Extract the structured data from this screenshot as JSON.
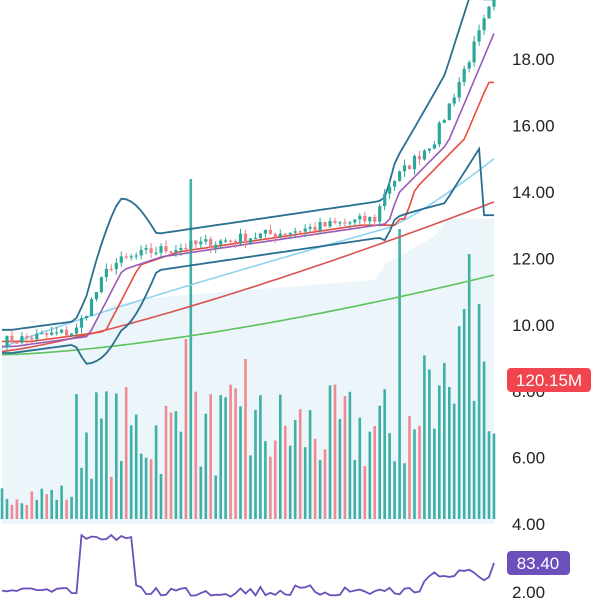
{
  "chart_data": {
    "type": "candlestick",
    "y_axis": {
      "ticks": [
        "18.00",
        "16.00",
        "14.00",
        "12.00",
        "10.00",
        "8.00",
        "6.00",
        "4.00"
      ],
      "tick_values": [
        18,
        16,
        14,
        12,
        10,
        8,
        6,
        4
      ],
      "side": "right"
    },
    "volume_badge": {
      "label": "120.15M",
      "color": "#f0444f"
    },
    "indicator_badge": {
      "label": "83.40",
      "color": "#6b4fbb"
    },
    "lower_axis_ticks": [
      "2.00"
    ],
    "colors": {
      "up": "#2ba89b",
      "down": "#ef7f86",
      "bollinger": "#2a6f8f",
      "ma_fast": "#9b59b6",
      "ma_mid": "#e74c3c",
      "ma_slow_light": "#8fd3f0",
      "ma_long": "#d9534f",
      "ma_longest": "#5cc35c",
      "area_fill": "#e6f1f8",
      "indicator": "#6b4fbb"
    },
    "price": {
      "base_range": [
        9.5,
        9.8
      ],
      "breakout_1": 11.8,
      "consolidation_range": [
        12.2,
        13.2
      ],
      "breakout_2": 14.1,
      "latest_high": 19.8
    },
    "moving_averages": {
      "ma_fast_end": 19.2,
      "ma_mid_end": 17.3,
      "ma_slow_light_end": 15.0,
      "ma_long_end": 13.7,
      "ma_longest_end": 11.5,
      "ma_longest_start": 9.1
    },
    "bollinger": {
      "upper_end": 19.8,
      "lower_end": 13.3
    }
  }
}
